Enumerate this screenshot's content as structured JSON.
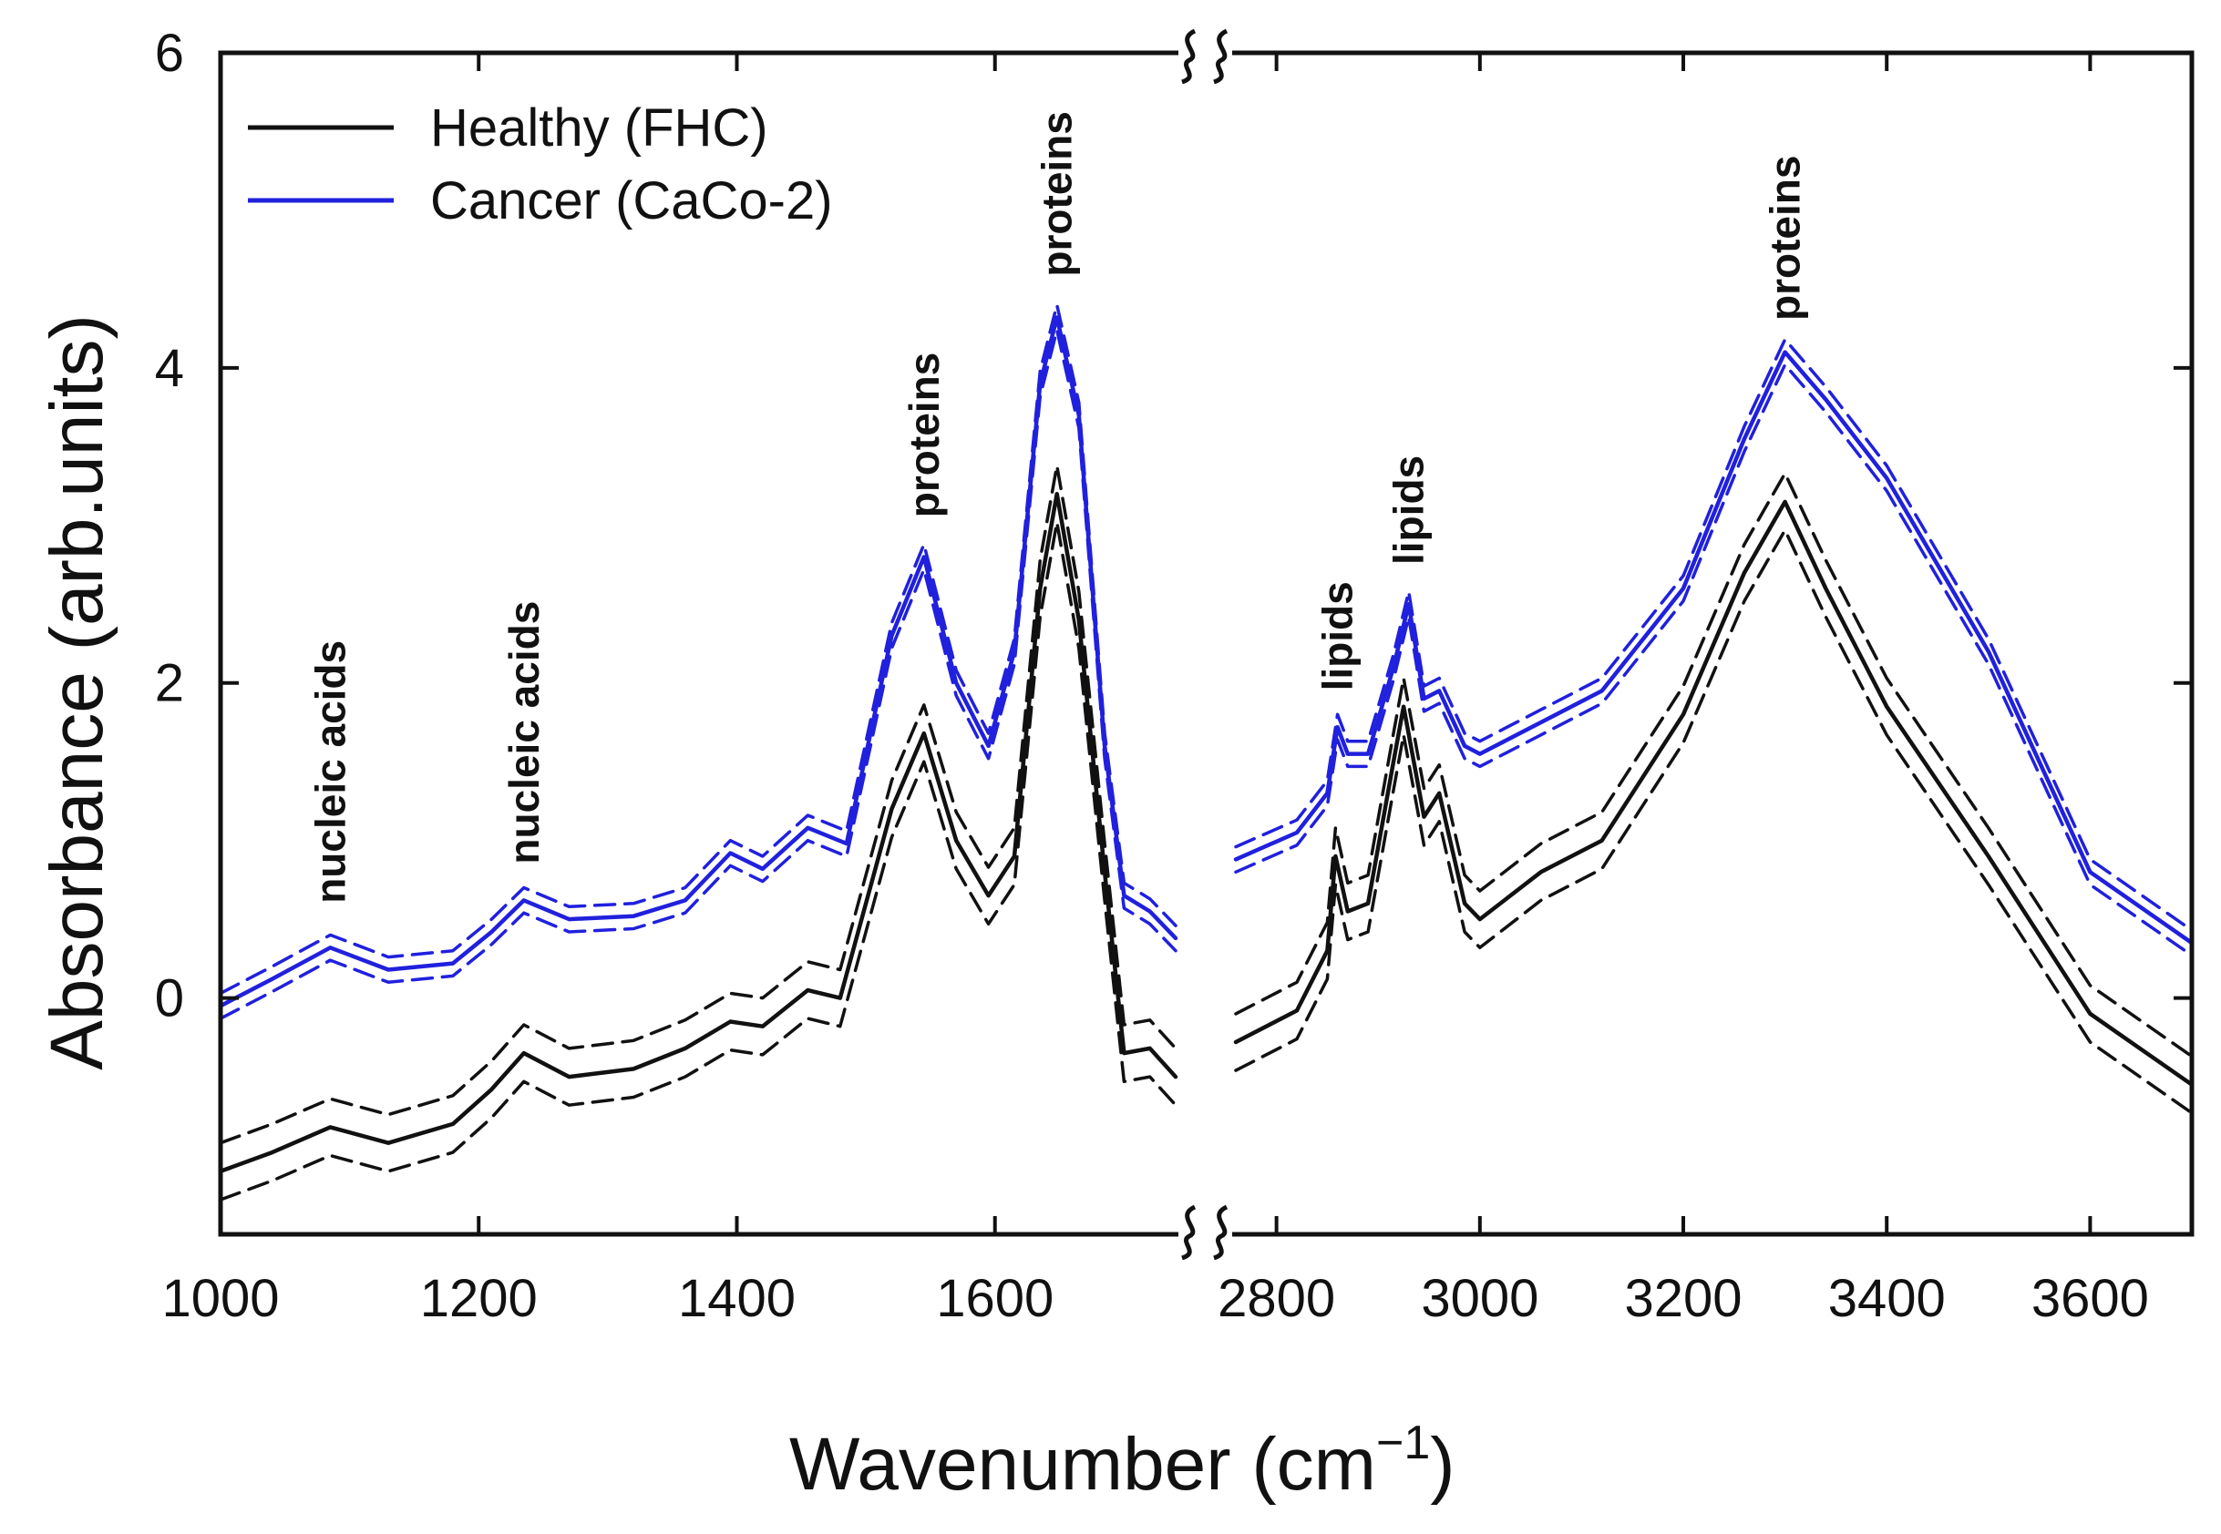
{
  "chart_data": {
    "type": "line",
    "xlabel": "Wavenumber (cm",
    "xlabel_sup": "−1",
    "xlabel_close": ")",
    "ylabel": "Absorbance (arb.units)",
    "ylim": [
      -1.5,
      6
    ],
    "yticks": [
      0,
      2,
      4,
      6
    ],
    "panels": [
      {
        "name": "fingerprint",
        "xlim": [
          1000,
          1740
        ],
        "xticks": [
          1000,
          1200,
          1400,
          1600
        ]
      },
      {
        "name": "high-wavenumber",
        "xlim": [
          2760,
          3700
        ],
        "xticks": [
          2800,
          3000,
          3200,
          3400,
          3600
        ]
      }
    ],
    "legend_position": "top-left",
    "series": [
      {
        "name": "Healthy (FHC)",
        "color": "#111111",
        "spread": 0.18,
        "points": [
          [
            1000,
            -1.1
          ],
          [
            1040,
            -0.98
          ],
          [
            1085,
            -0.82
          ],
          [
            1130,
            -0.92
          ],
          [
            1180,
            -0.8
          ],
          [
            1210,
            -0.58
          ],
          [
            1235,
            -0.35
          ],
          [
            1270,
            -0.5
          ],
          [
            1320,
            -0.45
          ],
          [
            1360,
            -0.32
          ],
          [
            1395,
            -0.15
          ],
          [
            1420,
            -0.18
          ],
          [
            1455,
            0.05
          ],
          [
            1480,
            0.0
          ],
          [
            1520,
            1.2
          ],
          [
            1545,
            1.68
          ],
          [
            1570,
            1.0
          ],
          [
            1595,
            0.65
          ],
          [
            1615,
            0.9
          ],
          [
            1635,
            2.6
          ],
          [
            1648,
            3.2
          ],
          [
            1665,
            2.4
          ],
          [
            1685,
            0.8
          ],
          [
            1700,
            -0.35
          ],
          [
            1720,
            -0.32
          ],
          [
            1740,
            -0.5
          ],
          [
            2760,
            -0.28
          ],
          [
            2820,
            -0.08
          ],
          [
            2850,
            0.3
          ],
          [
            2858,
            0.9
          ],
          [
            2870,
            0.55
          ],
          [
            2890,
            0.6
          ],
          [
            2915,
            1.5
          ],
          [
            2925,
            1.85
          ],
          [
            2945,
            1.15
          ],
          [
            2960,
            1.3
          ],
          [
            2985,
            0.6
          ],
          [
            3000,
            0.5
          ],
          [
            3060,
            0.8
          ],
          [
            3120,
            1.0
          ],
          [
            3200,
            1.8
          ],
          [
            3260,
            2.7
          ],
          [
            3300,
            3.15
          ],
          [
            3340,
            2.6
          ],
          [
            3400,
            1.85
          ],
          [
            3500,
            0.9
          ],
          [
            3600,
            -0.1
          ],
          [
            3700,
            -0.55
          ]
        ]
      },
      {
        "name": "Cancer (CaCo-2)",
        "color": "#2020dd",
        "spread": 0.08,
        "points": [
          [
            1000,
            -0.05
          ],
          [
            1040,
            0.12
          ],
          [
            1085,
            0.32
          ],
          [
            1130,
            0.18
          ],
          [
            1180,
            0.22
          ],
          [
            1210,
            0.42
          ],
          [
            1235,
            0.62
          ],
          [
            1270,
            0.5
          ],
          [
            1320,
            0.52
          ],
          [
            1360,
            0.62
          ],
          [
            1395,
            0.92
          ],
          [
            1420,
            0.82
          ],
          [
            1455,
            1.08
          ],
          [
            1485,
            0.98
          ],
          [
            1520,
            2.3
          ],
          [
            1545,
            2.8
          ],
          [
            1570,
            2.0
          ],
          [
            1595,
            1.6
          ],
          [
            1615,
            2.2
          ],
          [
            1635,
            3.9
          ],
          [
            1648,
            4.32
          ],
          [
            1665,
            3.7
          ],
          [
            1685,
            1.6
          ],
          [
            1700,
            0.65
          ],
          [
            1720,
            0.55
          ],
          [
            1740,
            0.38
          ],
          [
            2760,
            0.88
          ],
          [
            2820,
            1.05
          ],
          [
            2850,
            1.3
          ],
          [
            2860,
            1.72
          ],
          [
            2870,
            1.55
          ],
          [
            2890,
            1.55
          ],
          [
            2915,
            2.1
          ],
          [
            2930,
            2.5
          ],
          [
            2945,
            1.9
          ],
          [
            2960,
            1.95
          ],
          [
            2985,
            1.6
          ],
          [
            3000,
            1.55
          ],
          [
            3060,
            1.75
          ],
          [
            3120,
            1.95
          ],
          [
            3200,
            2.6
          ],
          [
            3260,
            3.55
          ],
          [
            3300,
            4.1
          ],
          [
            3340,
            3.8
          ],
          [
            3400,
            3.3
          ],
          [
            3500,
            2.2
          ],
          [
            3600,
            0.8
          ],
          [
            3700,
            0.35
          ]
        ]
      }
    ],
    "annotations": [
      {
        "text": "nucleic acids",
        "x": 1085,
        "y": 0.6
      },
      {
        "text": "nucleic acids",
        "x": 1235,
        "y": 0.85
      },
      {
        "text": "proteins",
        "x": 1545,
        "y": 3.05
      },
      {
        "text": "proteins",
        "x": 1648,
        "y": 4.58
      },
      {
        "text": "lipids",
        "x": 2860,
        "y": 1.95
      },
      {
        "text": "lipids",
        "x": 2930,
        "y": 2.75
      },
      {
        "text": "proteins",
        "x": 3300,
        "y": 4.3
      }
    ]
  }
}
